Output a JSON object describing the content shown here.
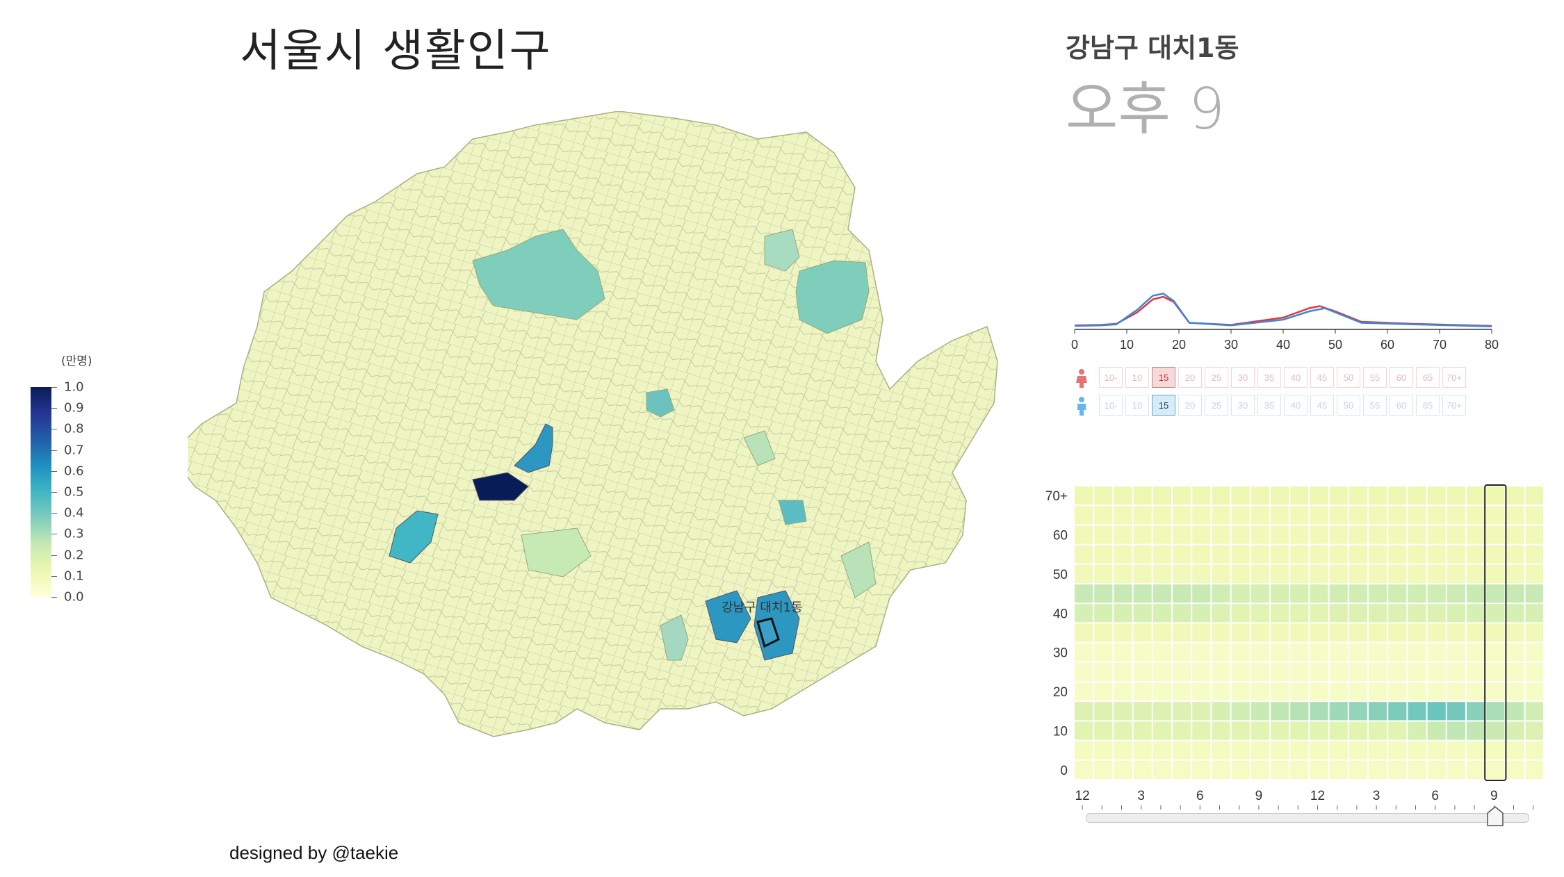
{
  "title": "서울시 생활인구",
  "credit": "designed by @taekie",
  "legend": {
    "unit": "(만명)",
    "ticks": [
      "1.0",
      "0.9",
      "0.8",
      "0.7",
      "0.6",
      "0.5",
      "0.4",
      "0.3",
      "0.2",
      "0.1",
      "0.0"
    ],
    "scale_colors": [
      "#081d58",
      "#253494",
      "#225ea8",
      "#1d91c0",
      "#41b6c4",
      "#7fcdbb",
      "#c7e9b4",
      "#edf8b1",
      "#ffffd9"
    ]
  },
  "map": {
    "highlight_label": "강남구 대치1동",
    "colors": {
      "base": "#eef5c2",
      "stroke": "#b8bf94"
    }
  },
  "detail": {
    "region_name": "강남구 대치1동",
    "time_label": "오후 9"
  },
  "density_chart": {
    "x_ticks": [
      "0",
      "10",
      "20",
      "30",
      "40",
      "50",
      "60",
      "70",
      "80"
    ],
    "xlim": [
      0,
      80
    ],
    "series": [
      {
        "color": "#e03a3a",
        "x": [
          0,
          5,
          8,
          12,
          15,
          17,
          19,
          22,
          30,
          40,
          45,
          47,
          50,
          55,
          65,
          80
        ],
        "y": [
          0.05,
          0.06,
          0.08,
          0.3,
          0.55,
          0.6,
          0.5,
          0.1,
          0.06,
          0.2,
          0.38,
          0.42,
          0.32,
          0.12,
          0.08,
          0.04
        ]
      },
      {
        "color": "#3a88d8",
        "x": [
          0,
          5,
          8,
          12,
          15,
          17,
          19,
          22,
          30,
          40,
          45,
          48,
          50,
          55,
          65,
          80
        ],
        "y": [
          0.04,
          0.05,
          0.07,
          0.35,
          0.62,
          0.66,
          0.52,
          0.1,
          0.05,
          0.16,
          0.32,
          0.38,
          0.3,
          0.1,
          0.07,
          0.03
        ]
      }
    ]
  },
  "age_selector": {
    "labels": [
      "10-",
      "10",
      "15",
      "20",
      "25",
      "30",
      "35",
      "40",
      "45",
      "50",
      "55",
      "60",
      "65",
      "70+"
    ],
    "selected": "15",
    "female_icon": "female-icon",
    "male_icon": "male-icon",
    "female_color": "#e57373",
    "male_color": "#64b5f6"
  },
  "heatmap": {
    "y_labels": [
      "70+",
      "60",
      "50",
      "40",
      "30",
      "20",
      "10",
      "0"
    ],
    "x_labels": [
      "12",
      "3",
      "6",
      "9",
      "12",
      "3",
      "6",
      "9"
    ],
    "selected_hour": 21,
    "rows": [
      [
        0.12,
        0.12,
        0.12,
        0.12,
        0.12,
        0.12,
        0.12,
        0.12,
        0.12,
        0.12,
        0.12,
        0.12,
        0.12,
        0.12,
        0.12,
        0.12,
        0.12,
        0.12,
        0.12,
        0.12,
        0.12,
        0.12,
        0.12,
        0.12
      ],
      [
        0.1,
        0.1,
        0.1,
        0.1,
        0.1,
        0.1,
        0.1,
        0.1,
        0.1,
        0.1,
        0.1,
        0.1,
        0.1,
        0.1,
        0.1,
        0.1,
        0.1,
        0.1,
        0.1,
        0.1,
        0.1,
        0.1,
        0.1,
        0.1
      ],
      [
        0.1,
        0.1,
        0.1,
        0.1,
        0.1,
        0.1,
        0.1,
        0.1,
        0.1,
        0.1,
        0.1,
        0.1,
        0.1,
        0.1,
        0.1,
        0.1,
        0.1,
        0.1,
        0.1,
        0.1,
        0.1,
        0.1,
        0.1,
        0.1
      ],
      [
        0.1,
        0.1,
        0.1,
        0.1,
        0.1,
        0.1,
        0.1,
        0.1,
        0.1,
        0.1,
        0.1,
        0.1,
        0.1,
        0.1,
        0.1,
        0.1,
        0.1,
        0.1,
        0.1,
        0.1,
        0.1,
        0.1,
        0.1,
        0.1
      ],
      [
        0.1,
        0.1,
        0.1,
        0.1,
        0.1,
        0.1,
        0.1,
        0.1,
        0.1,
        0.1,
        0.1,
        0.1,
        0.1,
        0.1,
        0.1,
        0.1,
        0.1,
        0.1,
        0.1,
        0.1,
        0.1,
        0.1,
        0.1,
        0.1
      ],
      [
        0.25,
        0.25,
        0.25,
        0.25,
        0.25,
        0.25,
        0.24,
        0.22,
        0.2,
        0.2,
        0.2,
        0.2,
        0.2,
        0.22,
        0.22,
        0.22,
        0.22,
        0.22,
        0.22,
        0.23,
        0.24,
        0.25,
        0.25,
        0.25
      ],
      [
        0.2,
        0.2,
        0.2,
        0.2,
        0.2,
        0.2,
        0.2,
        0.18,
        0.16,
        0.16,
        0.16,
        0.16,
        0.16,
        0.18,
        0.18,
        0.18,
        0.18,
        0.18,
        0.18,
        0.19,
        0.2,
        0.2,
        0.2,
        0.2
      ],
      [
        0.1,
        0.1,
        0.1,
        0.1,
        0.1,
        0.1,
        0.1,
        0.1,
        0.1,
        0.1,
        0.1,
        0.1,
        0.1,
        0.1,
        0.1,
        0.1,
        0.1,
        0.1,
        0.1,
        0.1,
        0.1,
        0.1,
        0.1,
        0.1
      ],
      [
        0.06,
        0.06,
        0.06,
        0.06,
        0.06,
        0.06,
        0.06,
        0.06,
        0.06,
        0.06,
        0.06,
        0.06,
        0.06,
        0.06,
        0.06,
        0.06,
        0.06,
        0.06,
        0.06,
        0.06,
        0.06,
        0.06,
        0.06,
        0.06
      ],
      [
        0.06,
        0.06,
        0.06,
        0.06,
        0.06,
        0.06,
        0.06,
        0.06,
        0.06,
        0.06,
        0.06,
        0.06,
        0.06,
        0.06,
        0.06,
        0.06,
        0.06,
        0.06,
        0.06,
        0.06,
        0.06,
        0.06,
        0.06,
        0.06
      ],
      [
        0.06,
        0.06,
        0.06,
        0.06,
        0.06,
        0.06,
        0.06,
        0.06,
        0.06,
        0.06,
        0.06,
        0.06,
        0.06,
        0.06,
        0.06,
        0.06,
        0.06,
        0.06,
        0.06,
        0.06,
        0.06,
        0.06,
        0.06,
        0.06
      ],
      [
        0.18,
        0.18,
        0.18,
        0.18,
        0.18,
        0.18,
        0.18,
        0.2,
        0.22,
        0.24,
        0.26,
        0.28,
        0.3,
        0.32,
        0.34,
        0.36,
        0.38,
        0.4,
        0.42,
        0.4,
        0.36,
        0.3,
        0.26,
        0.22
      ],
      [
        0.16,
        0.16,
        0.16,
        0.16,
        0.16,
        0.16,
        0.16,
        0.16,
        0.16,
        0.16,
        0.16,
        0.16,
        0.16,
        0.16,
        0.16,
        0.16,
        0.16,
        0.2,
        0.24,
        0.26,
        0.26,
        0.24,
        0.2,
        0.18
      ],
      [
        0.08,
        0.08,
        0.08,
        0.08,
        0.08,
        0.08,
        0.08,
        0.08,
        0.08,
        0.08,
        0.08,
        0.08,
        0.08,
        0.08,
        0.08,
        0.08,
        0.08,
        0.08,
        0.08,
        0.08,
        0.08,
        0.08,
        0.08,
        0.08
      ],
      [
        0.07,
        0.07,
        0.07,
        0.07,
        0.07,
        0.07,
        0.07,
        0.07,
        0.07,
        0.07,
        0.07,
        0.07,
        0.07,
        0.07,
        0.07,
        0.07,
        0.07,
        0.07,
        0.07,
        0.07,
        0.07,
        0.07,
        0.07,
        0.07
      ]
    ]
  },
  "slider": {
    "value_hour": 21
  }
}
